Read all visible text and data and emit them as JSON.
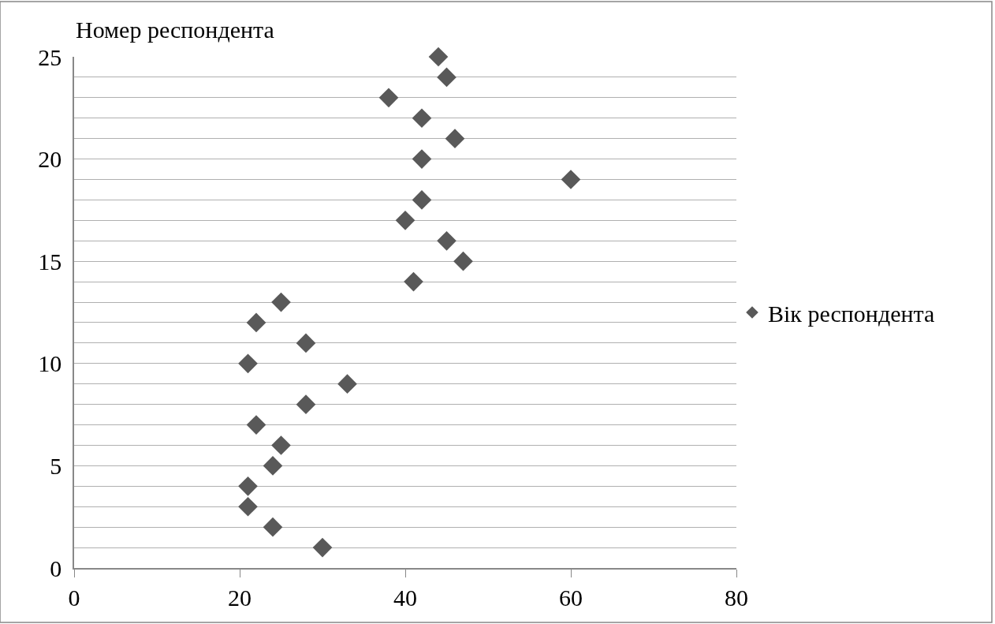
{
  "chart_data": {
    "type": "scatter",
    "ylabel": "Номер респондента",
    "x": [
      30,
      24,
      21,
      21,
      24,
      25,
      22,
      28,
      33,
      21,
      28,
      22,
      25,
      41,
      47,
      45,
      40,
      42,
      60,
      42,
      46,
      42,
      38,
      45,
      44
    ],
    "series": [
      {
        "name": "Вік респондента",
        "color": "#595959",
        "values": [
          1,
          2,
          3,
          4,
          5,
          6,
          7,
          8,
          9,
          10,
          11,
          12,
          13,
          14,
          15,
          16,
          17,
          18,
          19,
          20,
          21,
          22,
          23,
          24,
          25
        ]
      }
    ],
    "xlim": [
      0,
      80
    ],
    "xticks": [
      0,
      20,
      40,
      60,
      80
    ],
    "ylim": [
      0,
      25
    ],
    "yticks": [
      0,
      {
        "value": 1,
        "label": null
      },
      {
        "value": 2,
        "label": null
      },
      {
        "value": 3,
        "label": null
      },
      {
        "value": 4,
        "label": null
      },
      5,
      {
        "value": 6,
        "label": null
      },
      {
        "value": 7,
        "label": null
      },
      {
        "value": 8,
        "label": null
      },
      {
        "value": 9,
        "label": null
      },
      10,
      {
        "value": 11,
        "label": null
      },
      {
        "value": 12,
        "label": null
      },
      {
        "value": 13,
        "label": null
      },
      {
        "value": 14,
        "label": null
      },
      15,
      {
        "value": 16,
        "label": null
      },
      {
        "value": 17,
        "label": null
      },
      {
        "value": 18,
        "label": null
      },
      {
        "value": 19,
        "label": null
      },
      20,
      {
        "value": 21,
        "label": null
      },
      {
        "value": 22,
        "label": null
      },
      {
        "value": 23,
        "label": null
      },
      {
        "value": 24,
        "label": null
      },
      25
    ],
    "grid": "y",
    "legend": "right",
    "marker": "diamond"
  }
}
